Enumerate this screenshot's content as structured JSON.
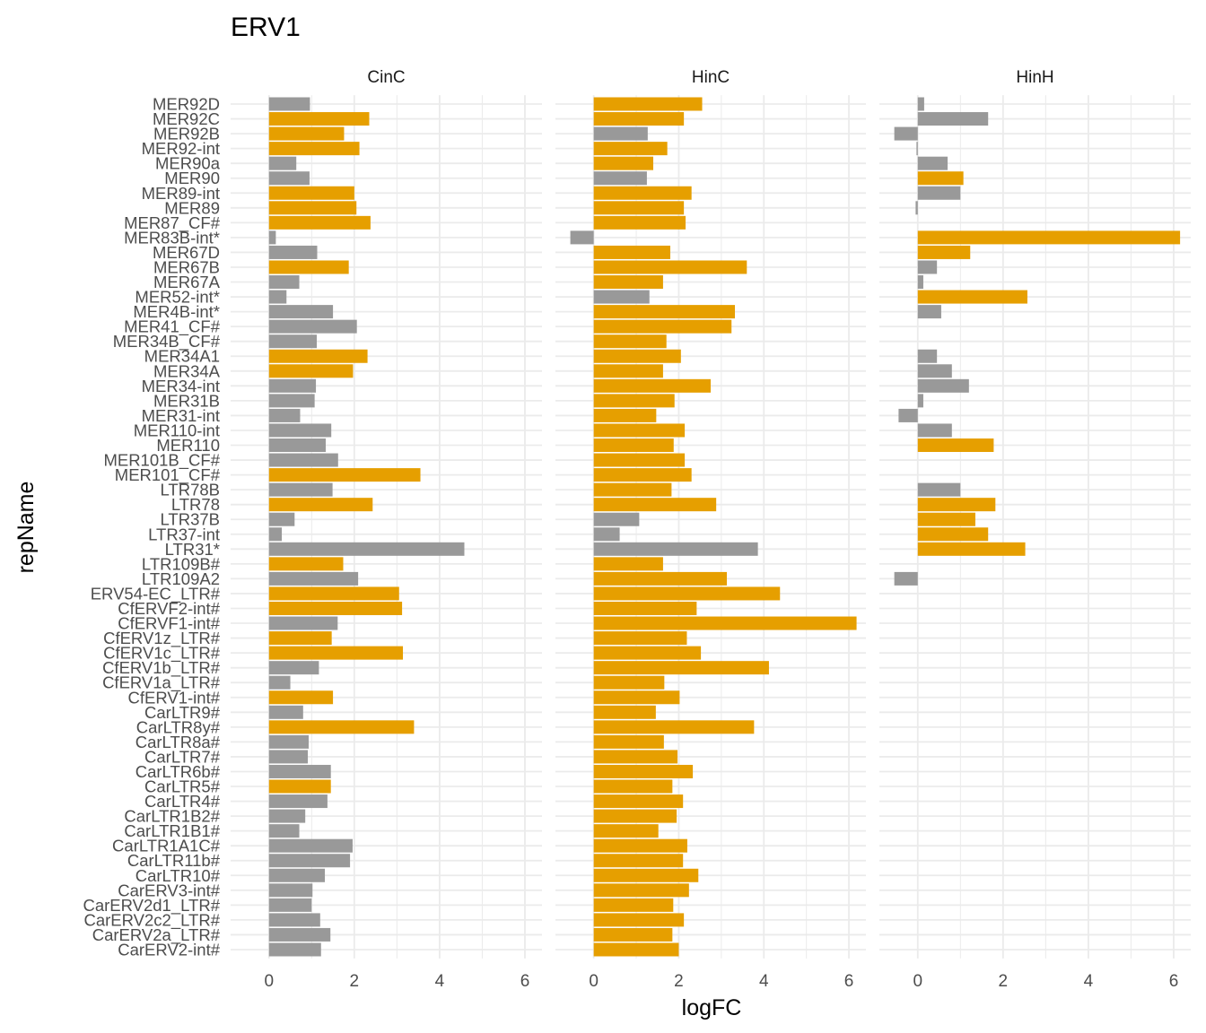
{
  "colors": {
    "up": "#E69F00",
    "down": "#999999",
    "grid_major": "#EBEBEB"
  },
  "chart_data": {
    "type": "bar",
    "orientation": "horizontal",
    "title": "ERV1",
    "xlabel": "logFC",
    "ylabel": "repName",
    "xlim": [
      -0.9,
      6.4
    ],
    "xticks": [
      0,
      2,
      4,
      6
    ],
    "grid": true,
    "legend": "none",
    "panels": [
      "CinC",
      "HinC",
      "HinH"
    ],
    "categories": [
      "MER92D",
      "MER92C",
      "MER92B",
      "MER92-int",
      "MER90a",
      "MER90",
      "MER89-int",
      "MER89",
      "MER87_CF#",
      "MER83B-int*",
      "MER67D",
      "MER67B",
      "MER67A",
      "MER52-int*",
      "MER4B-int*",
      "MER41_CF#",
      "MER34B_CF#",
      "MER34A1",
      "MER34A",
      "MER34-int",
      "MER31B",
      "MER31-int",
      "MER110-int",
      "MER110",
      "MER101B_CF#",
      "MER101_CF#",
      "LTR78B",
      "LTR78",
      "LTR37B",
      "LTR37-int",
      "LTR31*",
      "LTR109B#",
      "LTR109A2",
      "ERV54-EC_LTR#",
      "CfERVF2-int#",
      "CfERVF1-int#",
      "CfERV1z_LTR#",
      "CfERV1c_LTR#",
      "CfERV1b_LTR#",
      "CfERV1a_LTR#",
      "CfERV1-int#",
      "CarLTR9#",
      "CarLTR8y#",
      "CarLTR8a#",
      "CarLTR7#",
      "CarLTR6b#",
      "CarLTR5#",
      "CarLTR4#",
      "CarLTR1B2#",
      "CarLTR1B1#",
      "CarLTR1A1C#",
      "CarLTR11b#",
      "CarLTR10#",
      "CarERV3-int#",
      "CarERV2d1_LTR#",
      "CarERV2c2_LTR#",
      "CarERV2a_LTR#",
      "CarERV2-int#"
    ],
    "series": [
      {
        "panel": "CinC",
        "values": [
          0.96,
          2.35,
          1.76,
          2.12,
          0.64,
          0.95,
          2.0,
          2.05,
          2.38,
          0.16,
          1.13,
          1.87,
          0.71,
          0.41,
          1.5,
          2.06,
          1.12,
          2.31,
          1.97,
          1.1,
          1.07,
          0.73,
          1.46,
          1.33,
          1.62,
          3.55,
          1.49,
          2.43,
          0.6,
          0.3,
          4.58,
          1.74,
          2.09,
          3.05,
          3.12,
          1.61,
          1.47,
          3.14,
          1.17,
          0.5,
          1.5,
          0.8,
          3.4,
          0.93,
          0.91,
          1.45,
          1.45,
          1.37,
          0.85,
          0.71,
          1.96,
          1.9,
          1.31,
          1.02,
          1.0,
          1.2,
          1.44,
          1.22
        ],
        "significant": [
          false,
          true,
          true,
          true,
          false,
          false,
          true,
          true,
          true,
          false,
          false,
          true,
          false,
          false,
          false,
          false,
          false,
          true,
          true,
          false,
          false,
          false,
          false,
          false,
          false,
          true,
          false,
          true,
          false,
          false,
          false,
          true,
          false,
          true,
          true,
          false,
          true,
          true,
          false,
          false,
          true,
          false,
          true,
          false,
          false,
          false,
          true,
          false,
          false,
          false,
          false,
          false,
          false,
          false,
          false,
          false,
          false,
          false
        ]
      },
      {
        "panel": "HinC",
        "values": [
          2.55,
          2.12,
          1.27,
          1.73,
          1.4,
          1.25,
          2.3,
          2.12,
          2.16,
          -0.55,
          1.8,
          3.6,
          1.63,
          1.31,
          3.32,
          3.24,
          1.71,
          2.05,
          1.63,
          2.75,
          1.9,
          1.47,
          2.14,
          1.88,
          2.14,
          2.3,
          1.83,
          2.88,
          1.07,
          0.61,
          3.86,
          1.63,
          3.13,
          4.38,
          2.42,
          6.18,
          2.19,
          2.52,
          4.12,
          1.66,
          2.02,
          1.46,
          3.77,
          1.65,
          1.97,
          2.33,
          1.85,
          2.1,
          1.95,
          1.52,
          2.2,
          2.1,
          2.46,
          2.24,
          1.87,
          2.12,
          1.85,
          2.0
        ],
        "significant": [
          true,
          true,
          false,
          true,
          true,
          false,
          true,
          true,
          true,
          false,
          true,
          true,
          true,
          false,
          true,
          true,
          true,
          true,
          true,
          true,
          true,
          true,
          true,
          true,
          true,
          true,
          true,
          true,
          false,
          false,
          false,
          true,
          true,
          true,
          true,
          true,
          true,
          true,
          true,
          true,
          true,
          true,
          true,
          true,
          true,
          true,
          true,
          true,
          true,
          true,
          true,
          true,
          true,
          true,
          true,
          true,
          true,
          true
        ]
      },
      {
        "panel": "HinH",
        "values": [
          0.15,
          1.65,
          -0.55,
          -0.03,
          0.7,
          1.07,
          1.0,
          -0.05,
          null,
          6.15,
          1.23,
          0.45,
          0.13,
          2.57,
          0.55,
          null,
          null,
          0.45,
          0.8,
          1.2,
          0.13,
          -0.45,
          0.8,
          1.78,
          null,
          null,
          1.0,
          1.82,
          1.35,
          1.65,
          2.52,
          null,
          -0.55,
          null,
          null,
          null,
          null,
          null,
          null,
          null,
          null,
          null,
          null,
          null,
          null,
          null,
          null,
          null,
          null,
          null,
          null,
          null,
          null,
          null,
          null,
          null,
          null,
          null
        ],
        "significant": [
          false,
          false,
          false,
          false,
          false,
          true,
          false,
          false,
          false,
          true,
          true,
          false,
          false,
          true,
          false,
          false,
          false,
          false,
          false,
          false,
          false,
          false,
          false,
          true,
          false,
          false,
          false,
          true,
          true,
          true,
          true,
          false,
          false,
          false,
          false,
          false,
          false,
          false,
          false,
          false,
          false,
          false,
          false,
          false,
          false,
          false,
          false,
          false,
          false,
          false,
          false,
          false,
          false,
          false,
          false,
          false,
          false,
          false
        ]
      }
    ]
  }
}
